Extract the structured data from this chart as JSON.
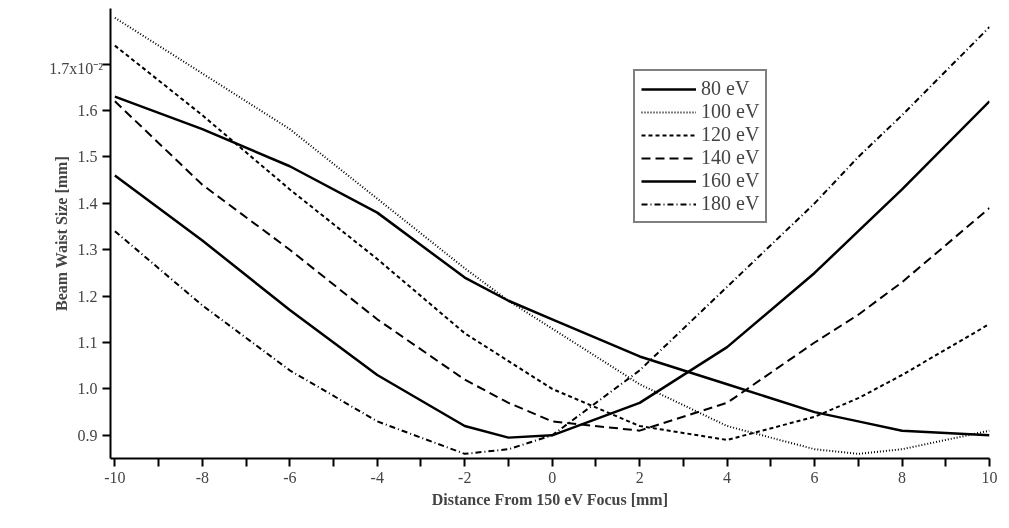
{
  "chart_data": {
    "type": "line",
    "xlabel": "Distance From 150 eV Focus [mm]",
    "ylabel": "Beam Waist Size [mm]",
    "xlim": [
      -10.1,
      10
    ],
    "ylim": [
      0.85,
      1.82
    ],
    "xticks": [
      -10,
      {
        "value": -9,
        "label": null
      },
      -8,
      {
        "value": -7,
        "label": null
      },
      -6,
      {
        "value": -5,
        "label": null
      },
      -4,
      {
        "value": -3,
        "label": null
      },
      -2,
      {
        "value": -1,
        "label": null
      },
      0,
      {
        "value": 1,
        "label": null
      },
      2,
      {
        "value": 3,
        "label": null
      },
      4,
      {
        "value": 5,
        "label": null
      },
      6,
      {
        "value": 7,
        "label": null
      },
      8,
      {
        "value": 9,
        "label": null
      },
      10
    ],
    "yticks": [
      0.9,
      {
        "value": 1.0,
        "label": "1.0"
      },
      1.1,
      1.2,
      1.3,
      1.4,
      1.5,
      1.6,
      {
        "value": 1.7,
        "label": null
      }
    ],
    "annotations": [
      "1.7x10⁻²"
    ],
    "grid": false,
    "legend": "top right",
    "marker": "none",
    "x": [
      -10,
      -8,
      -6,
      -4,
      -2,
      -1,
      0,
      2,
      4,
      6,
      7,
      8,
      10
    ],
    "series": [
      {
        "name": "80 eV",
        "color": "#000000",
        "line_style": "solid",
        "values": [
          1.63,
          1.56,
          1.48,
          1.38,
          1.24,
          1.19,
          1.15,
          1.07,
          1.01,
          0.95,
          0.93,
          0.91,
          0.9
        ]
      },
      {
        "name": "100 eV",
        "color": "#000000",
        "line_style": "dotted",
        "values": [
          1.8,
          1.68,
          1.56,
          1.41,
          1.26,
          1.19,
          1.13,
          1.01,
          0.92,
          0.87,
          0.86,
          0.87,
          0.91
        ]
      },
      {
        "name": "120 eV",
        "color": "#000000",
        "line_style": "dashed",
        "values": [
          1.74,
          1.59,
          1.43,
          1.28,
          1.12,
          1.06,
          1.0,
          0.92,
          0.89,
          0.94,
          0.98,
          1.03,
          1.14
        ]
      },
      {
        "name": "140 eV",
        "color": "#000000",
        "line_style": "longdash",
        "values": [
          1.62,
          1.44,
          1.3,
          1.15,
          1.02,
          0.97,
          0.93,
          0.91,
          0.97,
          1.1,
          1.16,
          1.23,
          1.39
        ]
      },
      {
        "name": "160 eV",
        "color": "#000000",
        "line_style": "solid",
        "values": [
          1.46,
          1.32,
          1.17,
          1.03,
          0.92,
          0.895,
          0.9,
          0.97,
          1.09,
          1.25,
          1.34,
          1.43,
          1.62
        ]
      },
      {
        "name": "180 eV",
        "color": "#000000",
        "line_style": "dashdot",
        "values": [
          1.34,
          1.18,
          1.04,
          0.93,
          0.86,
          0.87,
          0.9,
          1.04,
          1.22,
          1.4,
          1.5,
          1.59,
          1.78
        ]
      }
    ]
  }
}
